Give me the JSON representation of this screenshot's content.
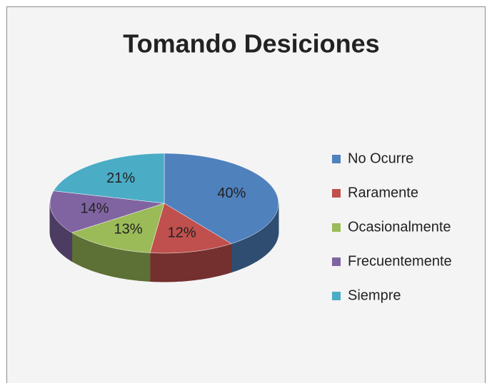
{
  "chart_data": {
    "type": "pie3d",
    "title": "Tomando Desiciones",
    "categories": [
      "No Ocurre",
      "Raramente",
      "Ocasionalmente",
      "Frecuentemente",
      "Siempre"
    ],
    "values": [
      40,
      12,
      13,
      14,
      21
    ],
    "value_labels": [
      "40%",
      "12%",
      "13%",
      "14%",
      "21%"
    ],
    "colors": [
      "#4f81bd",
      "#c0504d",
      "#9bbb59",
      "#8064a2",
      "#4bacc6"
    ],
    "legend": "right"
  }
}
